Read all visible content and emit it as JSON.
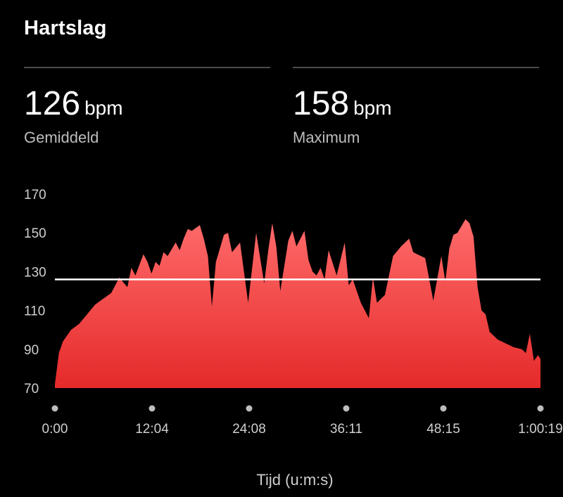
{
  "header": {
    "title": "Hartslag"
  },
  "stats": {
    "average": {
      "value": "126",
      "unit": "bpm",
      "label": "Gemiddeld"
    },
    "maximum": {
      "value": "158",
      "unit": "bpm",
      "label": "Maximum"
    }
  },
  "colors": {
    "area_top": "#ff6b6b",
    "area_bottom": "#e52a2a",
    "average_line": "#ffffff",
    "background": "#000000"
  },
  "chart_data": {
    "type": "area",
    "xlabel": "Tijd (u:m:s)",
    "ylabel": "",
    "ylim": [
      70,
      170
    ],
    "y_ticks": [
      "170",
      "150",
      "130",
      "110",
      "90",
      "70"
    ],
    "x_ticks": [
      "0:00",
      "12:04",
      "24:08",
      "36:11",
      "48:15",
      "1:00:19"
    ],
    "x_range_seconds": [
      0,
      3619
    ],
    "average_line": 126,
    "series": [
      {
        "x": [
          "0:00",
          "0:30",
          "1:00",
          "2:00",
          "3:00",
          "4:00",
          "5:00",
          "6:00",
          "7:00",
          "8:00",
          "9:00",
          "9:30",
          "10:00",
          "11:00",
          "11:30",
          "12:00",
          "12:30",
          "13:00",
          "13:30",
          "14:00",
          "15:00",
          "15:30",
          "16:00",
          "16:30",
          "17:00",
          "18:00",
          "18:30",
          "19:00",
          "19:30",
          "20:00",
          "21:00",
          "21:30",
          "22:00",
          "23:00",
          "24:00",
          "25:00",
          "26:00",
          "26:30",
          "27:00",
          "27:30",
          "28:00",
          "29:00",
          "29:30",
          "30:00",
          "31:00",
          "31:30",
          "32:00",
          "32:30",
          "33:00",
          "33:30",
          "34:00",
          "35:00",
          "36:00",
          "36:30",
          "37:00",
          "38:00",
          "39:00",
          "39:30",
          "40:00",
          "41:00",
          "42:00",
          "43:00",
          "43:30",
          "44:00",
          "44:30",
          "45:00",
          "46:00",
          "47:00",
          "48:00",
          "48:30",
          "49:00",
          "49:30",
          "50:00",
          "51:00",
          "51:30",
          "52:00",
          "52:30",
          "53:00",
          "53:30",
          "54:00",
          "55:00",
          "56:00",
          "57:00",
          "58:00",
          "58:30",
          "59:00",
          "59:30",
          "1:00:00",
          "1:00:19"
        ],
        "y": [
          72,
          88,
          94,
          100,
          103,
          108,
          113,
          116,
          119,
          127,
          122,
          132,
          128,
          139,
          135,
          129,
          135,
          133,
          140,
          138,
          145,
          141,
          147,
          152,
          151,
          154,
          147,
          138,
          112,
          135,
          149,
          150,
          140,
          145,
          114,
          150,
          124,
          141,
          155,
          143,
          120,
          146,
          151,
          143,
          151,
          136,
          130,
          128,
          132,
          126,
          141,
          128,
          145,
          123,
          126,
          114,
          106,
          127,
          114,
          118,
          138,
          143,
          145,
          147,
          140,
          139,
          137,
          115,
          138,
          125,
          142,
          149,
          150,
          157,
          155,
          148,
          122,
          110,
          108,
          99,
          95,
          93,
          91,
          90,
          88,
          98,
          84,
          87,
          85
        ]
      }
    ]
  }
}
